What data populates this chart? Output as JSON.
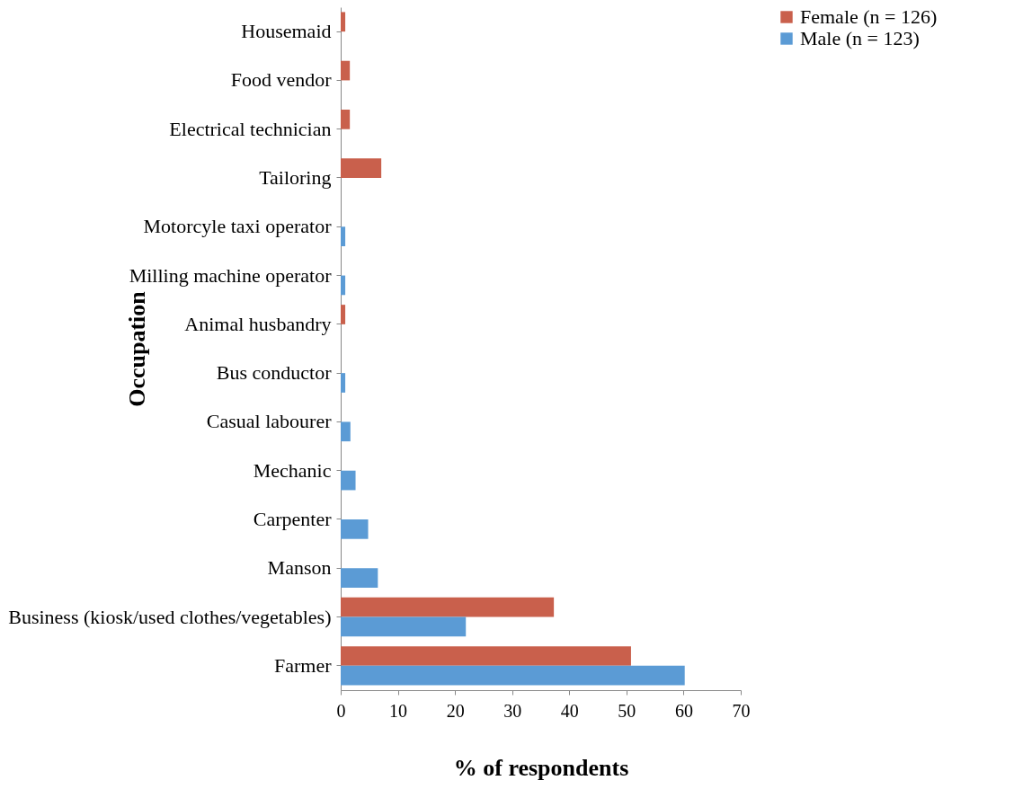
{
  "chart_data": {
    "type": "bar",
    "orientation": "horizontal",
    "xlabel": "% of respondents",
    "ylabel": "Occupation",
    "categories": [
      "Housemaid",
      "Food vendor",
      "Electrical technician",
      "Tailoring",
      "Motorcyle taxi operator",
      "Milling machine operator",
      "Animal husbandry",
      "Bus conductor",
      "Casual labourer",
      "Mechanic",
      "Carpenter",
      "Manson",
      "Business (kiosk/used clothes/vegetables)",
      "Farmer"
    ],
    "series": [
      {
        "name": "Female (n = 126)",
        "color": "#c9604c",
        "values": [
          0.8,
          1.6,
          1.6,
          7.1,
          null,
          null,
          0.8,
          null,
          null,
          null,
          null,
          null,
          37.3,
          50.8
        ]
      },
      {
        "name": "Male (n = 123)",
        "color": "#5b9bd5",
        "values": [
          null,
          null,
          null,
          null,
          0.8,
          0.8,
          null,
          0.8,
          1.7,
          2.6,
          4.8,
          6.5,
          21.9,
          60.2
        ]
      }
    ],
    "xlim": [
      0,
      70
    ],
    "xticks": [
      0,
      10,
      20,
      30,
      40,
      50,
      60,
      70
    ],
    "grid": false,
    "legend": "right"
  }
}
